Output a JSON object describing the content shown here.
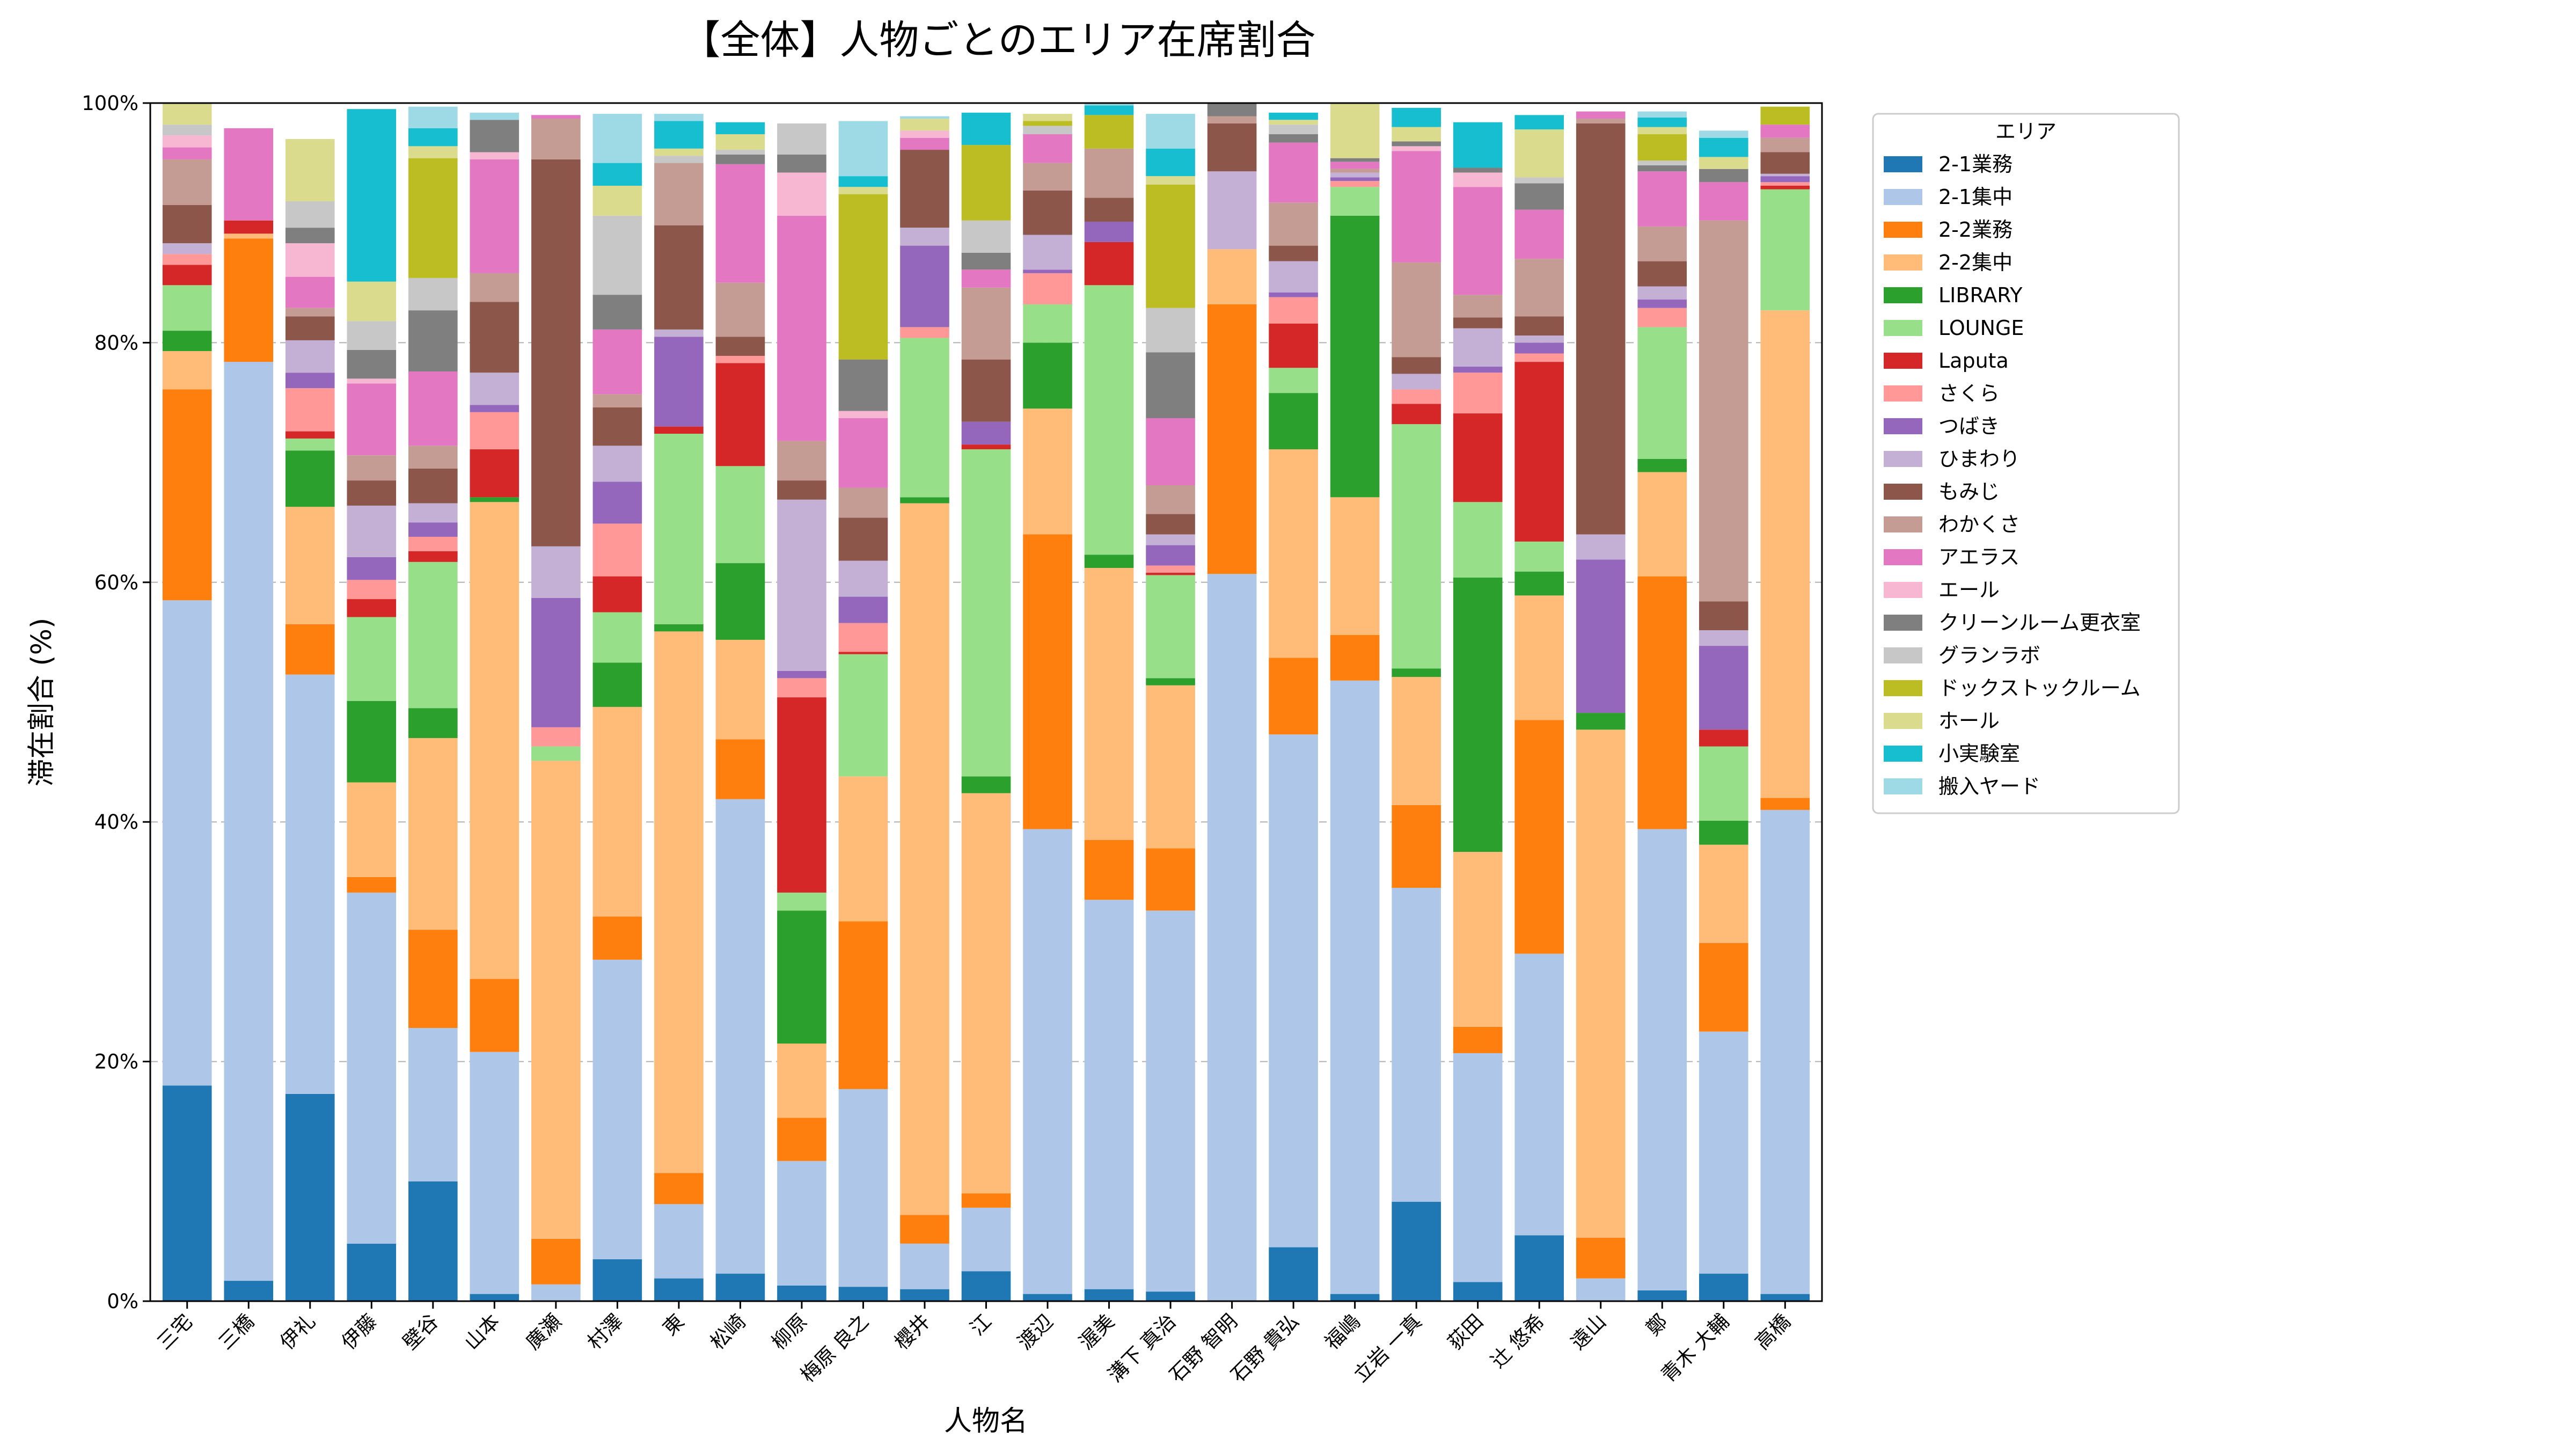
{
  "chart_data": {
    "type": "bar",
    "stacked": true,
    "title": "【全体】人物ごとのエリア在席割合",
    "xlabel": "人物名",
    "ylabel": "滞在割合 (%)",
    "ylim": [
      0,
      100
    ],
    "yticks": [
      "0%",
      "20%",
      "40%",
      "60%",
      "80%",
      "100%"
    ],
    "grid": "horizontal dashed",
    "legend": {
      "title": "エリア",
      "placement": "right, outside plot (upper)"
    },
    "categories": [
      "三宅",
      "三橋",
      "伊礼",
      "伊藤",
      "壁谷",
      "山本",
      "廣瀬",
      "村澤",
      "東",
      "松崎",
      "柳原",
      "梅原 良之",
      "櫻井",
      "江",
      "渡辺",
      "渥美",
      "溝下 真治",
      "石野 智明",
      "石野 貴弘",
      "福嶋",
      "立岩 一真",
      "荻田",
      "辻 悠希",
      "遠山",
      "鄭",
      "青木 大輔",
      "高橋"
    ],
    "series": [
      {
        "name": "2-1業務",
        "color": "#1f77b4",
        "values": [
          18.0,
          1.7,
          17.3,
          4.8,
          10.0,
          0.6,
          0.0,
          3.5,
          1.9,
          2.3,
          1.3,
          1.2,
          1.0,
          2.5,
          0.6,
          1.0,
          0.8,
          0.0,
          4.5,
          0.6,
          8.3,
          1.6,
          5.5,
          0.0,
          0.9,
          2.3,
          0.6
        ]
      },
      {
        "name": "2-1集中",
        "color": "#aec7e8",
        "values": [
          40.5,
          76.7,
          35.0,
          29.3,
          12.8,
          20.2,
          1.4,
          25.0,
          6.2,
          39.6,
          10.4,
          16.5,
          3.8,
          5.3,
          38.8,
          32.5,
          31.8,
          60.7,
          42.8,
          51.2,
          26.2,
          19.1,
          23.5,
          1.9,
          38.5,
          20.2,
          40.4
        ]
      },
      {
        "name": "2-2業務",
        "color": "#ff7f0e",
        "values": [
          17.6,
          10.3,
          4.2,
          1.3,
          8.2,
          6.1,
          3.8,
          3.6,
          2.6,
          5.0,
          3.6,
          14.0,
          2.4,
          1.2,
          24.6,
          5.0,
          5.2,
          22.5,
          6.4,
          3.8,
          6.9,
          2.2,
          19.5,
          3.4,
          21.1,
          7.4,
          1.0
        ]
      },
      {
        "name": "2-2集中",
        "color": "#ffbb78",
        "values": [
          3.2,
          0.4,
          9.8,
          7.9,
          16.0,
          39.8,
          39.9,
          17.5,
          45.2,
          8.3,
          6.2,
          12.1,
          59.4,
          33.4,
          10.5,
          22.7,
          13.6,
          4.6,
          17.4,
          11.5,
          10.7,
          14.6,
          10.4,
          42.4,
          8.7,
          8.2,
          40.7
        ]
      },
      {
        "name": "LIBRARY",
        "color": "#2ca02c",
        "values": [
          1.7,
          0.0,
          4.7,
          6.8,
          2.5,
          0.4,
          0.0,
          3.7,
          0.6,
          6.4,
          11.1,
          0.0,
          0.5,
          1.4,
          5.5,
          1.1,
          0.6,
          0.0,
          4.7,
          23.5,
          0.7,
          22.9,
          2.0,
          1.4,
          1.1,
          2.0,
          0.0
        ]
      },
      {
        "name": "LOUNGE",
        "color": "#98df8a",
        "values": [
          3.8,
          0.0,
          1.0,
          7.0,
          12.2,
          0.0,
          1.2,
          4.2,
          15.9,
          8.1,
          1.5,
          10.2,
          13.3,
          27.3,
          3.2,
          22.5,
          8.6,
          0.0,
          2.1,
          2.4,
          20.4,
          6.3,
          2.5,
          0.0,
          11.0,
          6.2,
          10.1
        ]
      },
      {
        "name": "Laputa",
        "color": "#d62728",
        "values": [
          1.7,
          1.1,
          0.6,
          1.5,
          0.9,
          4.0,
          0.0,
          3.0,
          0.6,
          8.6,
          16.3,
          0.2,
          0.0,
          0.4,
          0.0,
          3.6,
          0.2,
          0.0,
          3.7,
          0.0,
          1.7,
          7.4,
          15.0,
          0.0,
          0.0,
          1.4,
          0.3
        ]
      },
      {
        "name": "さくら",
        "color": "#ff9896",
        "values": [
          0.9,
          0.0,
          3.6,
          1.6,
          1.2,
          3.1,
          1.6,
          4.4,
          0.0,
          0.6,
          1.6,
          2.4,
          0.9,
          0.0,
          2.6,
          0.0,
          0.6,
          0.0,
          2.2,
          0.5,
          1.2,
          3.4,
          0.7,
          0.0,
          1.6,
          0.0,
          0.3
        ]
      },
      {
        "name": "つばき",
        "color": "#9467bd",
        "values": [
          0.0,
          0.0,
          1.3,
          1.9,
          1.2,
          0.6,
          10.8,
          3.5,
          7.5,
          0.0,
          0.6,
          2.2,
          6.8,
          1.9,
          0.3,
          1.7,
          1.7,
          0.0,
          0.4,
          0.3,
          0.0,
          0.5,
          0.9,
          12.8,
          0.7,
          7.0,
          0.5
        ]
      },
      {
        "name": "ひまわり",
        "color": "#c5b0d5",
        "values": [
          0.9,
          0.0,
          2.7,
          4.3,
          1.6,
          2.7,
          4.3,
          3.0,
          0.6,
          0.0,
          14.3,
          3.0,
          1.5,
          0.0,
          2.9,
          0.0,
          0.9,
          6.5,
          2.6,
          0.4,
          1.3,
          3.2,
          0.6,
          2.1,
          1.1,
          1.3,
          0.2
        ]
      },
      {
        "name": "もみじ",
        "color": "#8c564b",
        "values": [
          3.2,
          0.0,
          2.0,
          2.1,
          2.9,
          5.9,
          32.3,
          3.2,
          8.7,
          1.6,
          1.6,
          3.6,
          6.5,
          5.2,
          3.7,
          2.0,
          1.7,
          4.0,
          1.3,
          0.0,
          1.4,
          0.9,
          1.6,
          34.3,
          2.1,
          2.4,
          1.8
        ]
      },
      {
        "name": "わかくさ",
        "color": "#c49c94",
        "values": [
          3.8,
          0.0,
          0.7,
          2.1,
          1.9,
          2.4,
          3.4,
          1.1,
          5.2,
          4.5,
          3.3,
          2.5,
          0.0,
          6.0,
          2.3,
          4.1,
          2.4,
          0.6,
          3.6,
          0.3,
          7.9,
          1.9,
          4.8,
          0.4,
          2.9,
          31.8,
          1.2
        ]
      },
      {
        "name": "アエラス",
        "color": "#e377c2",
        "values": [
          1.0,
          7.7,
          2.6,
          6.0,
          6.2,
          9.5,
          0.3,
          5.4,
          0.0,
          9.9,
          18.8,
          5.8,
          1.0,
          1.5,
          2.4,
          0.0,
          5.6,
          0.0,
          5.0,
          0.6,
          9.3,
          9.0,
          4.1,
          0.6,
          4.6,
          3.2,
          1.1
        ]
      },
      {
        "name": "エール",
        "color": "#f7b6d2",
        "values": [
          1.0,
          0.0,
          2.8,
          0.4,
          0.0,
          0.6,
          0.0,
          0.0,
          0.0,
          0.0,
          3.6,
          0.6,
          0.6,
          0.0,
          0.0,
          0.0,
          0.0,
          0.0,
          0.0,
          0.0,
          0.4,
          1.2,
          0.0,
          0.0,
          0.0,
          0.0,
          0.0
        ]
      },
      {
        "name": "クリーンルーム更衣室",
        "color": "#7f7f7f",
        "values": [
          0.0,
          0.0,
          1.3,
          2.4,
          5.1,
          2.7,
          0.0,
          2.9,
          0.0,
          0.8,
          1.5,
          4.3,
          0.0,
          1.4,
          0.0,
          0.0,
          5.5,
          1.1,
          0.7,
          0.3,
          0.4,
          0.4,
          2.2,
          0.0,
          0.5,
          1.1,
          0.0
        ]
      },
      {
        "name": "グランラボ",
        "color": "#c7c7c7",
        "values": [
          0.9,
          0.0,
          2.2,
          2.4,
          2.7,
          0.0,
          0.0,
          6.6,
          0.6,
          0.4,
          2.6,
          0.0,
          0.0,
          2.7,
          0.7,
          0.0,
          3.7,
          0.0,
          0.8,
          0.0,
          0.0,
          0.0,
          0.5,
          0.0,
          0.4,
          0.0,
          0.0
        ]
      },
      {
        "name": "ドックストックルーム",
        "color": "#bcbd22",
        "values": [
          0.0,
          0.0,
          0.0,
          0.0,
          10.0,
          0.0,
          0.0,
          0.0,
          0.0,
          0.0,
          0.0,
          13.8,
          0.0,
          6.3,
          0.4,
          2.8,
          10.3,
          0.0,
          0.0,
          0.0,
          0.0,
          0.0,
          0.0,
          0.0,
          2.2,
          0.0,
          1.5
        ]
      },
      {
        "name": "ホール",
        "color": "#dbdb8d",
        "values": [
          2.5,
          0.0,
          5.2,
          3.3,
          1.0,
          0.0,
          0.0,
          2.5,
          0.6,
          1.3,
          0.0,
          0.6,
          1.0,
          0.0,
          0.6,
          0.0,
          0.7,
          0.0,
          0.4,
          4.6,
          1.2,
          0.0,
          4.0,
          0.0,
          0.6,
          1.0,
          0.0
        ]
      },
      {
        "name": "小実験室",
        "color": "#17becf",
        "values": [
          0.0,
          0.0,
          0.0,
          14.4,
          1.5,
          0.0,
          0.0,
          1.9,
          2.3,
          1.0,
          0.0,
          0.9,
          0.0,
          2.7,
          0.0,
          0.8,
          2.3,
          0.0,
          0.6,
          0.0,
          1.6,
          3.8,
          1.2,
          0.0,
          0.8,
          1.6,
          0.0
        ]
      },
      {
        "name": "搬入ヤード",
        "color": "#9edae5",
        "values": [
          0.0,
          0.0,
          0.0,
          0.0,
          1.8,
          0.6,
          0.0,
          4.1,
          0.6,
          0.0,
          0.0,
          4.6,
          0.2,
          0.0,
          0.0,
          0.8,
          2.9,
          0.0,
          0.0,
          0.0,
          0.0,
          0.0,
          0.0,
          0.0,
          0.5,
          0.6,
          0.0
        ]
      }
    ]
  }
}
